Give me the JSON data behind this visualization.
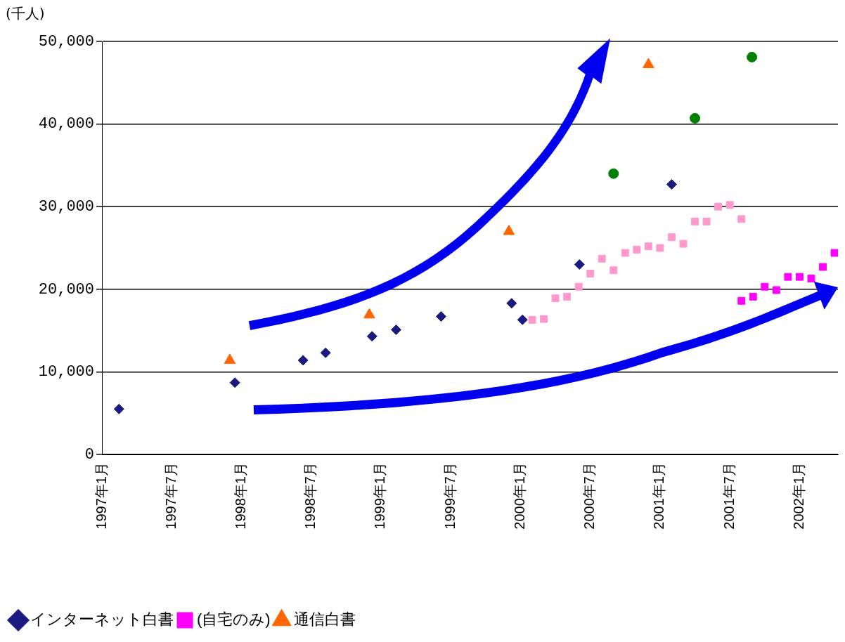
{
  "chart_data": {
    "type": "scatter",
    "ylabel": "(千人)",
    "legend": "bottom",
    "grid": "y",
    "xlim": [
      "1997-01",
      "2002-04-10"
    ],
    "xticks": [
      {
        "value": "1997-01",
        "label": "1997年1月"
      },
      {
        "value": "1997-07",
        "label": "1997年7月"
      },
      {
        "value": "1998-01",
        "label": "1998年1月"
      },
      {
        "value": "1998-07",
        "label": "1998年7月"
      },
      {
        "value": "1999-01",
        "label": "1999年1月"
      },
      {
        "value": "1999-07",
        "label": "1999年7月"
      },
      {
        "value": "2000-01",
        "label": "2000年1月"
      },
      {
        "value": "2000-07",
        "label": "2000年7月"
      },
      {
        "value": "2001-01",
        "label": "2001年1月"
      },
      {
        "value": "2001-07",
        "label": "2001年7月"
      },
      {
        "value": "2002-01",
        "label": "2002年1月"
      }
    ],
    "ylim": [
      0,
      50000
    ],
    "yticks": [
      {
        "value": 0,
        "label": "0"
      },
      {
        "value": 10000,
        "label": "10,000"
      },
      {
        "value": 20000,
        "label": "20,000"
      },
      {
        "value": 30000,
        "label": "30,000"
      },
      {
        "value": 40000,
        "label": "40,000"
      },
      {
        "value": 50000,
        "label": "50,000"
      }
    ],
    "series": [
      {
        "name": "インターネット白書",
        "color": "#1a1a80",
        "marker": "diamond",
        "x": [
          "1997-02-15",
          "1997-12-14",
          "1998-06-10",
          "1998-08-08",
          "1998-12-08",
          "1999-02-10",
          "1999-06-06",
          "1999-12-08",
          "2000-01-06",
          "2000-06-03",
          "2001-01-31"
        ],
        "values": [
          5500,
          8700,
          11400,
          12300,
          14300,
          15100,
          16700,
          18300,
          16300,
          23000,
          32700
        ]
      },
      {
        "color": "#ff99cc",
        "marker": "square",
        "x": [
          "2000-02",
          "2000-03",
          "2000-04",
          "2000-05",
          "2000-06",
          "2000-07",
          "2000-08",
          "2000-09",
          "2000-10",
          "2000-11",
          "2000-12",
          "2001-01",
          "2001-02",
          "2001-03",
          "2001-04",
          "2001-05",
          "2001-06",
          "2001-07",
          "2001-08"
        ],
        "values": [
          16300,
          16400,
          18900,
          19100,
          20300,
          21900,
          23700,
          22300,
          24400,
          24800,
          25200,
          25000,
          26300,
          25500,
          28200,
          28200,
          30000,
          30200,
          28500
        ]
      },
      {
        "name": "(自宅のみ)",
        "color": "#ff00ff",
        "marker": "square",
        "x": [
          "2001-08",
          "2001-09",
          "2001-10",
          "2001-11",
          "2001-12",
          "2002-01",
          "2002-02",
          "2002-03",
          "2002-04"
        ],
        "values": [
          18600,
          19100,
          20300,
          19900,
          21500,
          21500,
          21300,
          22700,
          24400
        ]
      },
      {
        "name": "通信白書",
        "color": "#ff6600",
        "marker": "triangle",
        "x": [
          "1997-12",
          "1998-12",
          "1999-12",
          "2000-12"
        ],
        "values": [
          11400,
          16900,
          27000,
          47200
        ]
      },
      {
        "color": "#008000",
        "marker": "circle",
        "x": [
          "2000-09",
          "2001-04",
          "2001-08-28"
        ],
        "values": [
          34000,
          40700,
          48100
        ]
      }
    ]
  }
}
